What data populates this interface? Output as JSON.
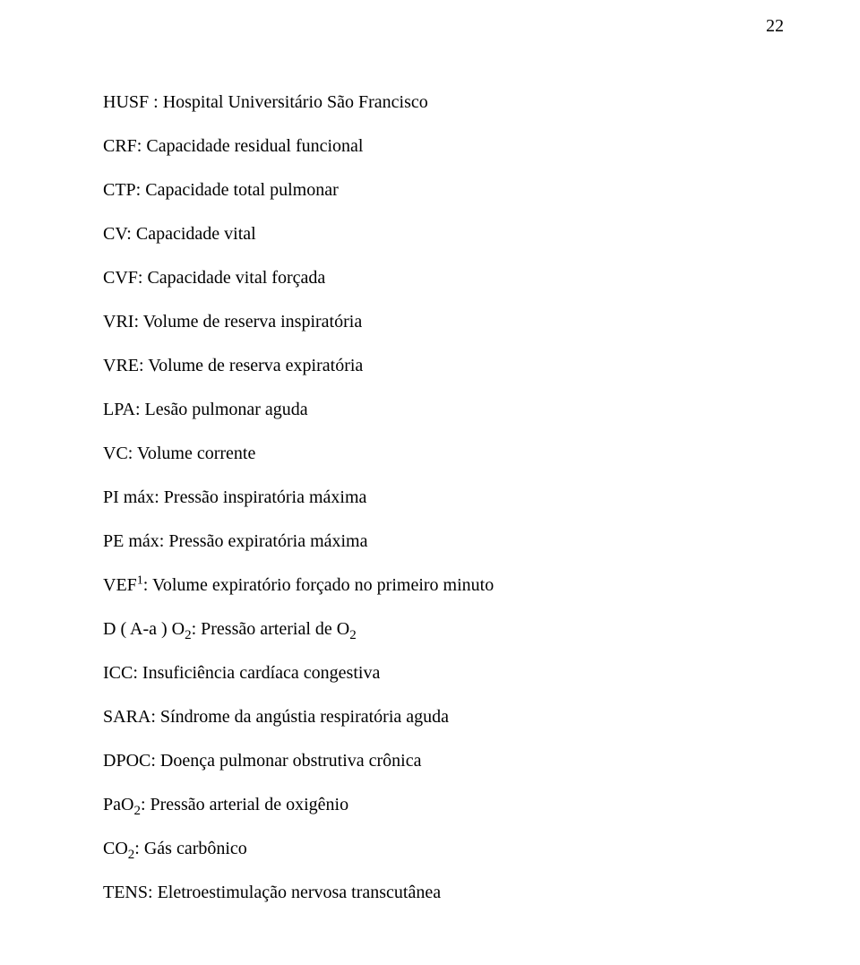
{
  "page_number": "22",
  "lines": {
    "l1_pre": "HUSF : ",
    "l1_def": "Hospital Universitário São Francisco",
    "l2_pre": "CRF: ",
    "l2_def": "Capacidade residual funcional",
    "l3_pre": "CTP: ",
    "l3_def": "Capacidade total pulmonar",
    "l4_pre": "CV: ",
    "l4_def": "Capacidade vital",
    "l5_pre": "CVF: ",
    "l5_def": "Capacidade vital forçada",
    "l6_pre": "VRI: ",
    "l6_def": "Volume de reserva inspiratória",
    "l7_pre": "VRE: ",
    "l7_def": "Volume de reserva expiratória",
    "l8_pre": "LPA: ",
    "l8_def": "Lesão pulmonar aguda",
    "l9_pre": "VC: ",
    "l9_def": "Volume corrente",
    "l10_pre": "PI máx: ",
    "l10_def": "Pressão inspiratória máxima",
    "l11_pre": "PE máx: ",
    "l11_def": "Pressão expiratória máxima",
    "l12_pre": "VEF",
    "l12_sup": "1",
    "l12_post": ": Volume expiratório forçado no primeiro minuto",
    "l13_pre": "D ( A-a ) O",
    "l13_sub": "2",
    "l13_mid": ": Pressão arterial de O",
    "l13_sub2": "2",
    "l14_pre": "ICC: ",
    "l14_def": "Insuficiência cardíaca congestiva",
    "l15_pre": "SARA: ",
    "l15_def": "Síndrome da angústia respiratória aguda",
    "l16_pre": "DPOC: ",
    "l16_def": "Doença pulmonar obstrutiva crônica",
    "l17_pre": "PaO",
    "l17_sub": "2",
    "l17_post": ": Pressão arterial de oxigênio",
    "l18_pre": "CO",
    "l18_sub": "2",
    "l18_post": ": Gás carbônico",
    "l19_pre": "TENS: ",
    "l19_def": "Eletroestimulação nervosa transcutânea"
  },
  "style": {
    "font_family": "Times New Roman",
    "font_size_pt": 15,
    "text_color": "#000000",
    "background_color": "#ffffff",
    "line_height": 2.45
  }
}
